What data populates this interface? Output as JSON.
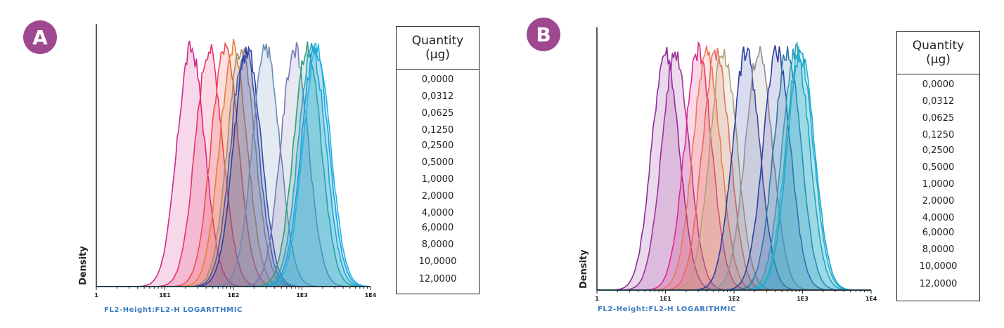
{
  "panels": [
    {
      "badge": "A",
      "legend_title_line1": "Quantity",
      "legend_title_line2": "(µg)"
    },
    {
      "badge": "B",
      "legend_title_line1": "Quantity",
      "legend_title_line2": "(µg)"
    }
  ],
  "chart_data": [
    {
      "type": "area",
      "panel": "A",
      "xlabel": "FL2-Height:FL2-H LOGARITHMIC",
      "ylabel": "Density",
      "x_scale": "log",
      "xlim": [
        1,
        10000
      ],
      "x_ticks": [
        "1",
        "1E1",
        "1E2",
        "1E3",
        "1E4"
      ],
      "y_ticks": [],
      "legend_placement": "right",
      "legend_title": "Quantity (µg)",
      "series": [
        {
          "name": "0,0000",
          "peak_x": 24,
          "color": "#d0288c"
        },
        {
          "name": "0,0312",
          "peak_x": 44,
          "color": "#e8306e"
        },
        {
          "name": "0,0625",
          "peak_x": 75,
          "color": "#f04c50"
        },
        {
          "name": "0,1250",
          "peak_x": 100,
          "color": "#e88038"
        },
        {
          "name": "0,2500",
          "peak_x": 130,
          "color": "#a09070"
        },
        {
          "name": "0,5000",
          "peak_x": 145,
          "color": "#4858a8"
        },
        {
          "name": "1,0000",
          "peak_x": 160,
          "color": "#2c3e9e"
        },
        {
          "name": "2,0000",
          "peak_x": 300,
          "color": "#6c8ab8"
        },
        {
          "name": "4,0000",
          "peak_x": 780,
          "color": "#7878b8"
        },
        {
          "name": "6,0000",
          "peak_x": 1200,
          "color": "#28a078"
        },
        {
          "name": "8,0000",
          "peak_x": 1400,
          "color": "#2aa0c8"
        },
        {
          "name": "10,0000",
          "peak_x": 1550,
          "color": "#1e9ed8"
        },
        {
          "name": "12,0000",
          "peak_x": 1650,
          "color": "#20b4e4"
        }
      ]
    },
    {
      "type": "area",
      "panel": "B",
      "xlabel": "FL2-Height:FL2-H LOGARITHMIC",
      "ylabel": "Density",
      "x_scale": "log",
      "xlim": [
        1,
        10000
      ],
      "x_ticks": [
        "1",
        "1E1",
        "1E2",
        "1E3",
        "1E4"
      ],
      "y_ticks": [],
      "legend_placement": "right",
      "legend_title": "Quantity (µg)",
      "series": [
        {
          "name": "0,0000",
          "peak_x": 10,
          "color": "#8a2a98"
        },
        {
          "name": "0,0312",
          "peak_x": 14,
          "color": "#a0309a"
        },
        {
          "name": "0,0625",
          "peak_x": 30,
          "color": "#e02888"
        },
        {
          "name": "0,1250",
          "peak_x": 40,
          "color": "#f07850"
        },
        {
          "name": "0,2500",
          "peak_x": 55,
          "color": "#e86860"
        },
        {
          "name": "0,5000",
          "peak_x": 70,
          "color": "#b0a070"
        },
        {
          "name": "1,0000",
          "peak_x": 150,
          "color": "#2c3e9e"
        },
        {
          "name": "2,0000",
          "peak_x": 230,
          "color": "#909098"
        },
        {
          "name": "4,0000",
          "peak_x": 420,
          "color": "#3040a0"
        },
        {
          "name": "6,0000",
          "peak_x": 600,
          "color": "#2878a8"
        },
        {
          "name": "8,0000",
          "peak_x": 800,
          "color": "#28a0c0"
        },
        {
          "name": "10,0000",
          "peak_x": 900,
          "color": "#30b0b8"
        },
        {
          "name": "12,0000",
          "peak_x": 950,
          "color": "#18aadc"
        }
      ]
    }
  ]
}
